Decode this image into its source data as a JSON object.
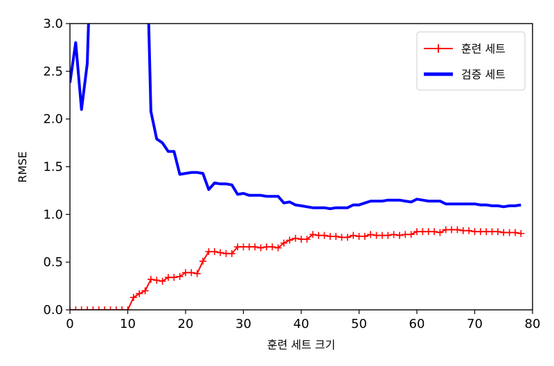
{
  "chart_data": {
    "type": "line",
    "title": "",
    "xlabel": "훈련 세트 크기",
    "ylabel": "RMSE",
    "xlim": [
      0,
      80
    ],
    "ylim": [
      0,
      3.0
    ],
    "xticks": [
      0,
      10,
      20,
      30,
      40,
      50,
      60,
      70,
      80
    ],
    "yticks": [
      0.0,
      0.5,
      1.0,
      1.5,
      2.0,
      2.5,
      3.0
    ],
    "xtick_labels": [
      "0",
      "10",
      "20",
      "30",
      "40",
      "50",
      "60",
      "70",
      "80"
    ],
    "ytick_labels": [
      "0.0",
      "0.5",
      "1.0",
      "1.5",
      "2.0",
      "2.5",
      "3.0"
    ],
    "grid": false,
    "legend": {
      "position": "top-right"
    },
    "series": [
      {
        "name": "훈련 세트",
        "color": "#ff0000",
        "style": "line-plus",
        "x": [
          0,
          1,
          2,
          3,
          4,
          5,
          6,
          7,
          8,
          9,
          10,
          11,
          12,
          13,
          14,
          15,
          16,
          17,
          18,
          19,
          20,
          21,
          22,
          23,
          24,
          25,
          26,
          27,
          28,
          29,
          30,
          31,
          32,
          33,
          34,
          35,
          36,
          37,
          38,
          39,
          40,
          41,
          42,
          43,
          44,
          45,
          46,
          47,
          48,
          49,
          50,
          51,
          52,
          53,
          54,
          55,
          56,
          57,
          58,
          59,
          60,
          61,
          62,
          63,
          64,
          65,
          66,
          67,
          68,
          69,
          70,
          71,
          72,
          73,
          74,
          75,
          76,
          77,
          78
        ],
        "y": [
          0,
          0,
          0,
          0,
          0,
          0,
          0,
          0,
          0,
          0,
          0,
          0.13,
          0.17,
          0.2,
          0.32,
          0.31,
          0.3,
          0.34,
          0.34,
          0.35,
          0.39,
          0.39,
          0.38,
          0.51,
          0.61,
          0.61,
          0.6,
          0.59,
          0.59,
          0.66,
          0.66,
          0.66,
          0.66,
          0.65,
          0.66,
          0.66,
          0.65,
          0.7,
          0.73,
          0.75,
          0.74,
          0.74,
          0.79,
          0.78,
          0.78,
          0.77,
          0.77,
          0.76,
          0.76,
          0.78,
          0.77,
          0.77,
          0.79,
          0.78,
          0.78,
          0.78,
          0.79,
          0.78,
          0.79,
          0.79,
          0.82,
          0.82,
          0.82,
          0.82,
          0.81,
          0.84,
          0.84,
          0.84,
          0.83,
          0.83,
          0.82,
          0.82,
          0.82,
          0.82,
          0.82,
          0.81,
          0.81,
          0.81,
          0.8
        ]
      },
      {
        "name": "검증 세트",
        "color": "#0000ff",
        "style": "thick-line",
        "x": [
          0,
          1,
          2,
          3,
          4,
          13,
          14,
          15,
          16,
          17,
          18,
          19,
          20,
          21,
          22,
          23,
          24,
          25,
          26,
          27,
          28,
          29,
          30,
          31,
          32,
          33,
          34,
          35,
          36,
          37,
          38,
          39,
          40,
          41,
          42,
          43,
          44,
          45,
          46,
          47,
          48,
          49,
          50,
          51,
          52,
          53,
          54,
          55,
          56,
          57,
          58,
          59,
          60,
          61,
          62,
          63,
          64,
          65,
          66,
          67,
          68,
          69,
          70,
          71,
          72,
          73,
          74,
          75,
          76,
          77,
          78
        ],
        "y": [
          2.38,
          2.8,
          2.1,
          2.58,
          4.5,
          4.5,
          2.08,
          1.79,
          1.75,
          1.66,
          1.66,
          1.42,
          1.43,
          1.44,
          1.44,
          1.43,
          1.26,
          1.33,
          1.32,
          1.32,
          1.31,
          1.21,
          1.22,
          1.2,
          1.2,
          1.2,
          1.19,
          1.19,
          1.19,
          1.12,
          1.13,
          1.1,
          1.09,
          1.08,
          1.07,
          1.07,
          1.07,
          1.06,
          1.07,
          1.07,
          1.07,
          1.1,
          1.1,
          1.12,
          1.14,
          1.14,
          1.14,
          1.15,
          1.15,
          1.15,
          1.14,
          1.13,
          1.16,
          1.15,
          1.14,
          1.14,
          1.14,
          1.11,
          1.11,
          1.11,
          1.11,
          1.11,
          1.11,
          1.1,
          1.1,
          1.09,
          1.09,
          1.08,
          1.09,
          1.09,
          1.1
        ]
      }
    ]
  }
}
